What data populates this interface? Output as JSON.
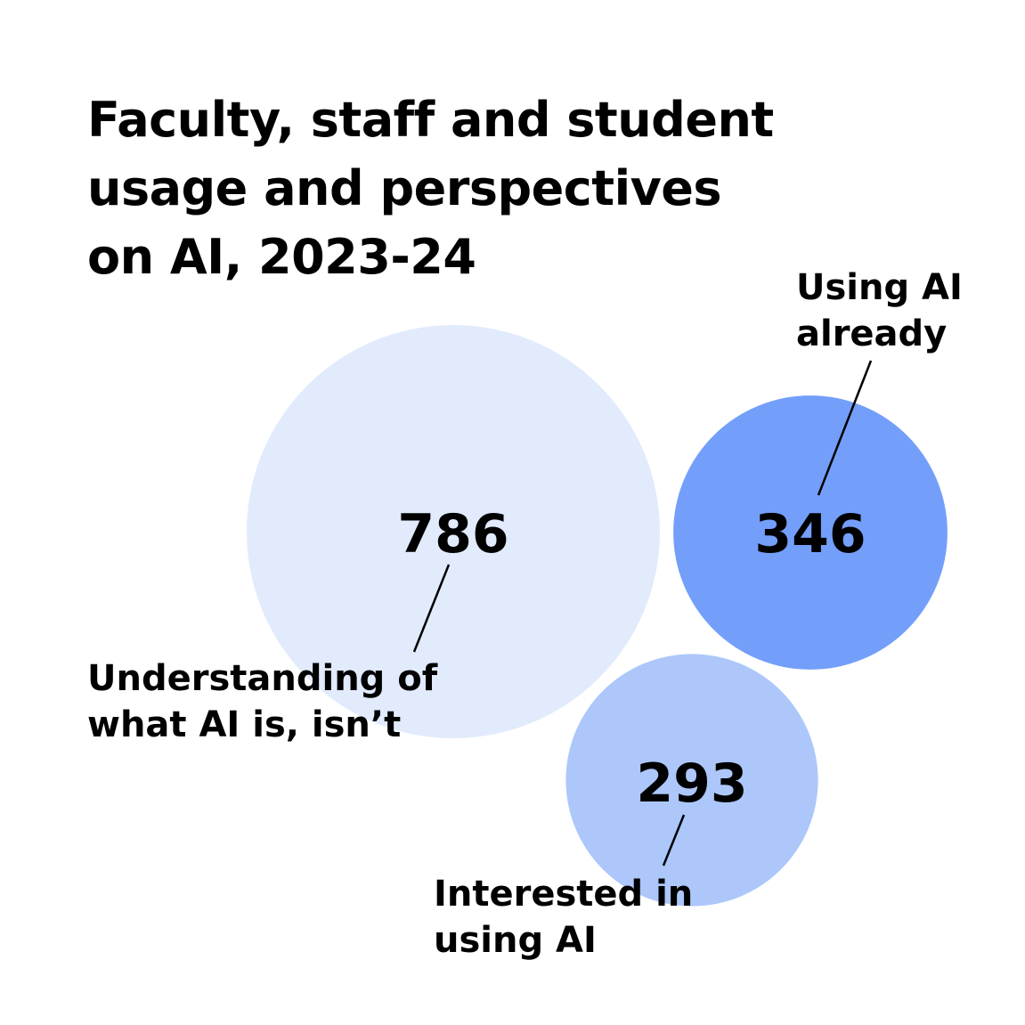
{
  "title_lines": [
    "Faculty, staff and student",
    "usage and perspectives",
    "on AI, 2023-24"
  ],
  "chart_data": {
    "type": "bubble",
    "title": "Faculty, staff and student usage and perspectives on AI, 2023-24",
    "categories": [
      "Understanding of what AI is, isn't",
      "Using AI already",
      "Interested in using AI"
    ],
    "values": [
      786,
      346,
      293
    ],
    "points": [
      {
        "label_lines": [
          "Understanding of",
          "what AI is, isn’t"
        ],
        "value": 786,
        "display": "786",
        "color": "#e1ebfc"
      },
      {
        "label_lines": [
          "Using AI",
          "already"
        ],
        "value": 346,
        "display": "346",
        "color": "#739ffb"
      },
      {
        "label_lines": [
          "Interested in",
          "using AI"
        ],
        "value": 293,
        "display": "293",
        "color": "#adc7fb"
      }
    ]
  }
}
